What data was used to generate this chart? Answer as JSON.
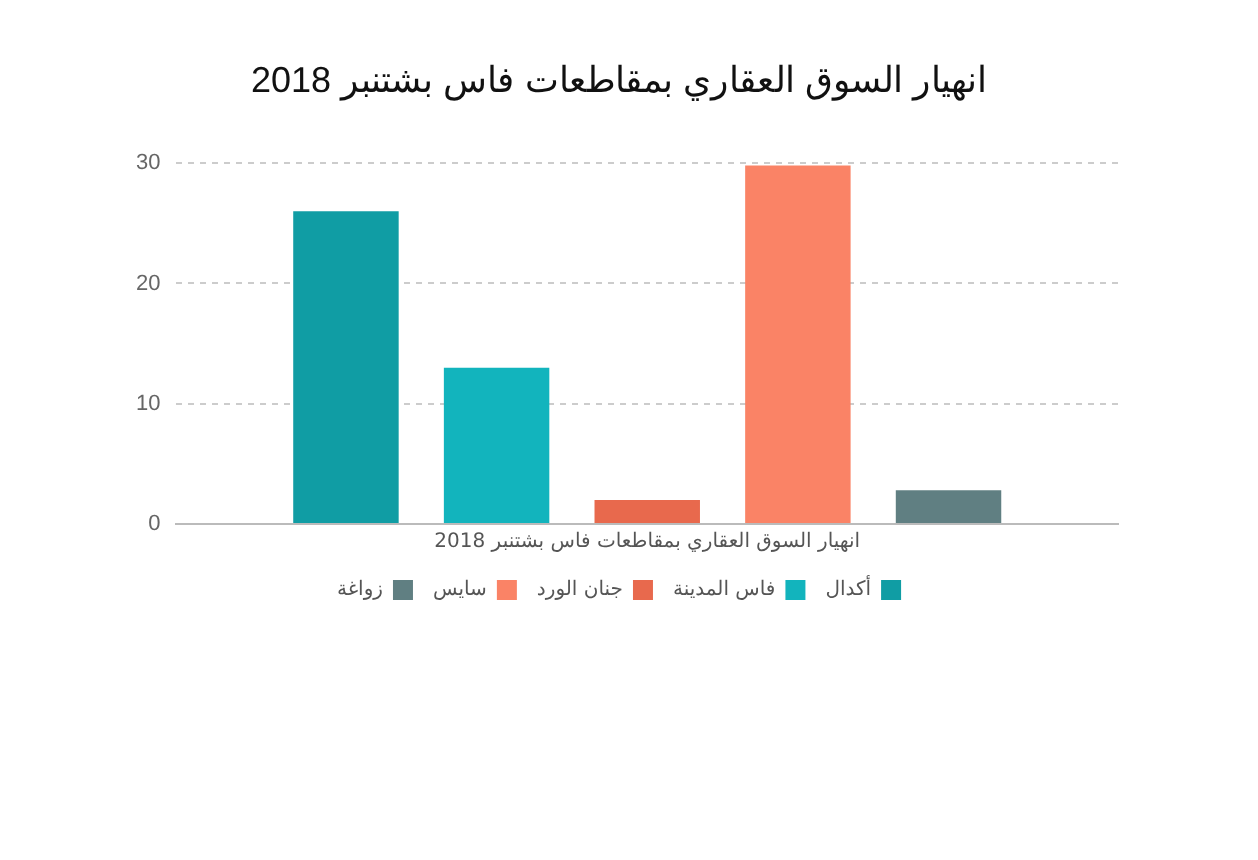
{
  "chart_data": {
    "type": "bar",
    "title": "انهيار السوق العقاري بمقاطعات فاس بشتنبر 2018",
    "categories": [
      "انهيار السوق العقاري بمقاطعات فاس بشتنبر 2018"
    ],
    "series": [
      {
        "name": "أكدال",
        "color": "#109da4",
        "values": [
          26
        ]
      },
      {
        "name": "فاس المدينة",
        "color": "#12b4bd",
        "values": [
          13
        ]
      },
      {
        "name": "جنان الورد",
        "color": "#e8694d",
        "values": [
          2
        ]
      },
      {
        "name": "سايس",
        "color": "#fa8366",
        "values": [
          29.8
        ]
      },
      {
        "name": "زواغة",
        "color": "#607f82",
        "values": [
          2.8
        ]
      }
    ],
    "ylim": [
      0,
      30
    ],
    "yticks": [
      0,
      10,
      20,
      30
    ],
    "grid": "y",
    "legend": "bottom"
  }
}
